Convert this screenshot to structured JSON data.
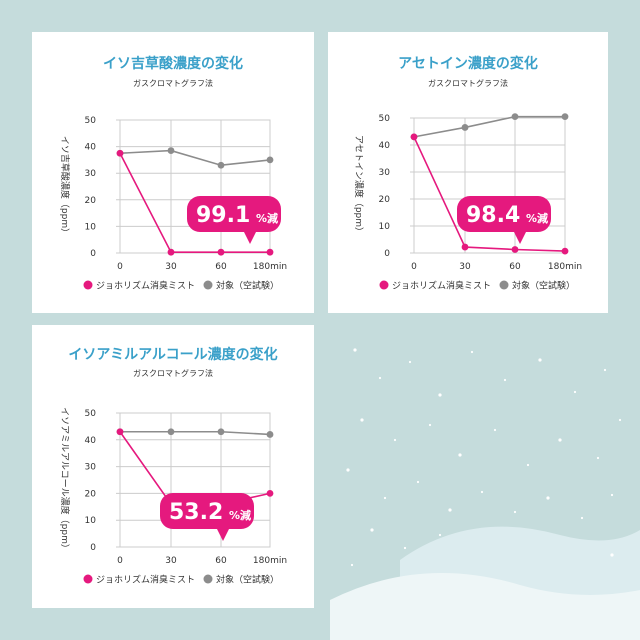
{
  "colors": {
    "background": "#c5dcdc",
    "panel": "#ffffff",
    "title": "#3aa0c9",
    "product": "#e5197e",
    "control": "#8c8c8c",
    "grid": "#cccccc"
  },
  "legend": {
    "product": "ジョホリズム消臭ミスト",
    "control": "対象（空試験）"
  },
  "chart_data": [
    {
      "type": "line",
      "title": "イソ吉草酸濃度の変化",
      "subtitle": "ガスクロマトグラフ法",
      "ylabel": "イソ吉草酸濃度（ppm）",
      "x": [
        0,
        30,
        60,
        180
      ],
      "x_tick_labels": [
        "0",
        "30",
        "60",
        "180min"
      ],
      "y_ticks": [
        "0",
        "10",
        "20",
        "30",
        "40",
        "50"
      ],
      "ylim": [
        0,
        50
      ],
      "series": [
        {
          "name": "ジョホリズム消臭ミスト",
          "values": [
            37.5,
            0.3,
            0.3,
            0.3
          ]
        },
        {
          "name": "対象（空試験）",
          "values": [
            37.5,
            38.5,
            33,
            35
          ]
        }
      ],
      "badge": {
        "number": "99.1",
        "suffix": "%減"
      }
    },
    {
      "type": "line",
      "title": "アセトイン濃度の変化",
      "subtitle": "ガスクロマトグラフ法",
      "ylabel": "アセトイン濃度（ppm）",
      "x": [
        0,
        30,
        60,
        180
      ],
      "x_tick_labels": [
        "0",
        "30",
        "60",
        "180min"
      ],
      "y_ticks": [
        "0",
        "10",
        "20",
        "30",
        "40",
        "50"
      ],
      "ylim": [
        0,
        50
      ],
      "series": [
        {
          "name": "ジョホリズム消臭ミスト",
          "values": [
            43,
            2.2,
            1.3,
            0.7
          ]
        },
        {
          "name": "対象（空試験）",
          "values": [
            43,
            46.5,
            50.5,
            50.5
          ]
        }
      ],
      "badge": {
        "number": "98.4",
        "suffix": "%減"
      }
    },
    {
      "type": "line",
      "title": "イソアミルアルコール濃度の変化",
      "subtitle": "ガスクロマトグラフ法",
      "ylabel": "イソアミルアルコール濃度（ppm）",
      "x": [
        0,
        30,
        60,
        180
      ],
      "x_tick_labels": [
        "0",
        "30",
        "60",
        "180min"
      ],
      "y_ticks": [
        "0",
        "10",
        "20",
        "30",
        "40",
        "50"
      ],
      "ylim": [
        0,
        50
      ],
      "series": [
        {
          "name": "ジョホリズム消臭ミスト",
          "values": [
            43,
            16,
            16,
            20
          ]
        },
        {
          "name": "対象（空試験）",
          "values": [
            43,
            43,
            43,
            42
          ]
        }
      ],
      "badge": {
        "number": "53.2",
        "suffix": "%減"
      }
    }
  ]
}
